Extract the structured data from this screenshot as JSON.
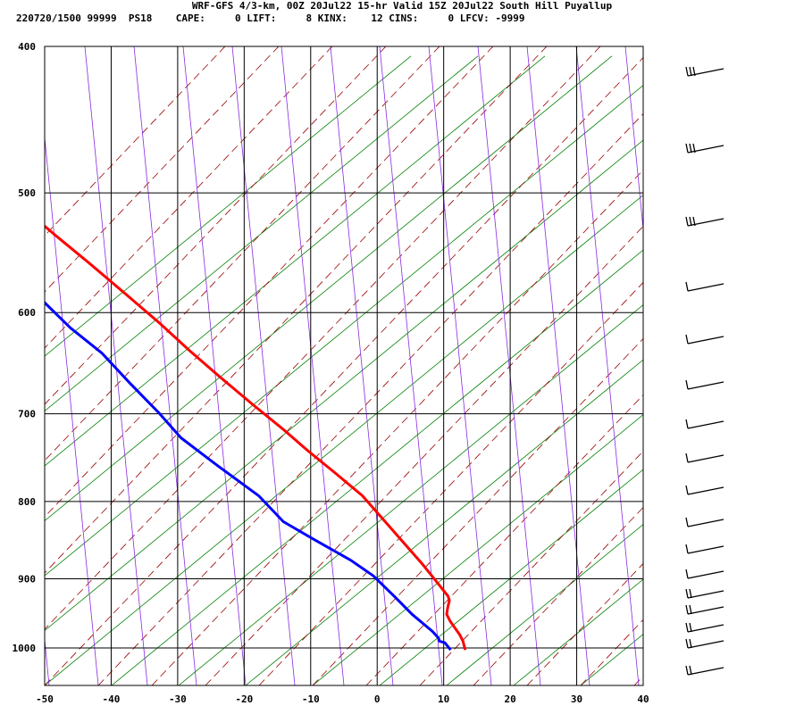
{
  "header": {
    "line1": "WRF-GFS 4/3-km, 00Z 20Jul22 15-hr Valid 15Z 20Jul22 South Hill Puyallup",
    "line2": "220720/1500 99999  PS18    CAPE:     0 LIFT:     8 KINX:    12 CINS:     0 LFCV: -9999"
  },
  "chart_data": {
    "type": "line",
    "subtype": "skew-T log-P sounding",
    "title": "WRF-GFS 4/3-km, 00Z 20Jul22 15-hr Valid 15Z 20Jul22 South Hill Puyallup",
    "xlabel": "",
    "ylabel": "",
    "x_ticks": [
      -50,
      -40,
      -30,
      -20,
      -10,
      0,
      10,
      20,
      30,
      40
    ],
    "y_ticks": [
      400,
      500,
      600,
      700,
      800,
      900,
      1000
    ],
    "xlim": [
      -50,
      40
    ],
    "ylim": [
      1040,
      400
    ],
    "y_scale": "log (pressure, hPa)",
    "grid": true,
    "colors": {
      "temperature": "#ff0000",
      "dewpoint": "#0000ff",
      "dry_adiabat": "#008000",
      "moist_adiabat": "#990000",
      "mixing_ratio": "#8a2be2",
      "grid": "#000000"
    },
    "series": [
      {
        "name": "",
        "role": "temperature",
        "points": [
          [
            -8.4,
            415
          ],
          [
            -5.6,
            450
          ],
          [
            -2.7,
            480
          ],
          [
            -0.5,
            507
          ],
          [
            1.2,
            532
          ],
          [
            3.0,
            556
          ],
          [
            4.9,
            585
          ],
          [
            6.4,
            610
          ],
          [
            7.6,
            636
          ],
          [
            9.0,
            662
          ],
          [
            10.6,
            690
          ],
          [
            12.2,
            717
          ],
          [
            13.3,
            740
          ],
          [
            14.8,
            767
          ],
          [
            16.1,
            793
          ],
          [
            16.3,
            814
          ],
          [
            16.6,
            846
          ],
          [
            16.9,
            880
          ],
          [
            16.9,
            905
          ],
          [
            16.9,
            924
          ],
          [
            16.6,
            930
          ],
          [
            15.5,
            940
          ],
          [
            14.5,
            950
          ],
          [
            14.2,
            960
          ],
          [
            14.0,
            980
          ],
          [
            13.7,
            990
          ],
          [
            13.0,
            1003
          ]
        ],
        "style": "solid"
      },
      {
        "name": "",
        "role": "dewpoint",
        "points": [
          [
            -31.6,
            415
          ],
          [
            -27.6,
            470
          ],
          [
            -24.6,
            503
          ],
          [
            -21.4,
            534
          ],
          [
            -13.0,
            574
          ],
          [
            -8.6,
            586
          ],
          [
            -7.6,
            614
          ],
          [
            -5.9,
            638
          ],
          [
            -5.3,
            668
          ],
          [
            -4.5,
            700
          ],
          [
            -4.2,
            726
          ],
          [
            -2.1,
            757
          ],
          [
            0.5,
            793
          ],
          [
            1.1,
            825
          ],
          [
            3.5,
            847
          ],
          [
            6.6,
            875
          ],
          [
            8.1,
            896
          ],
          [
            8.8,
            925
          ],
          [
            9.3,
            950
          ],
          [
            10.3,
            975
          ],
          [
            10.4,
            985
          ],
          [
            10.2,
            990
          ],
          [
            10.8,
            992
          ],
          [
            10.8,
            1003
          ]
        ],
        "style": "solid"
      }
    ],
    "wind_barbs": {
      "count": 17,
      "note": "wind barbs plotted on right side of diagram"
    }
  }
}
